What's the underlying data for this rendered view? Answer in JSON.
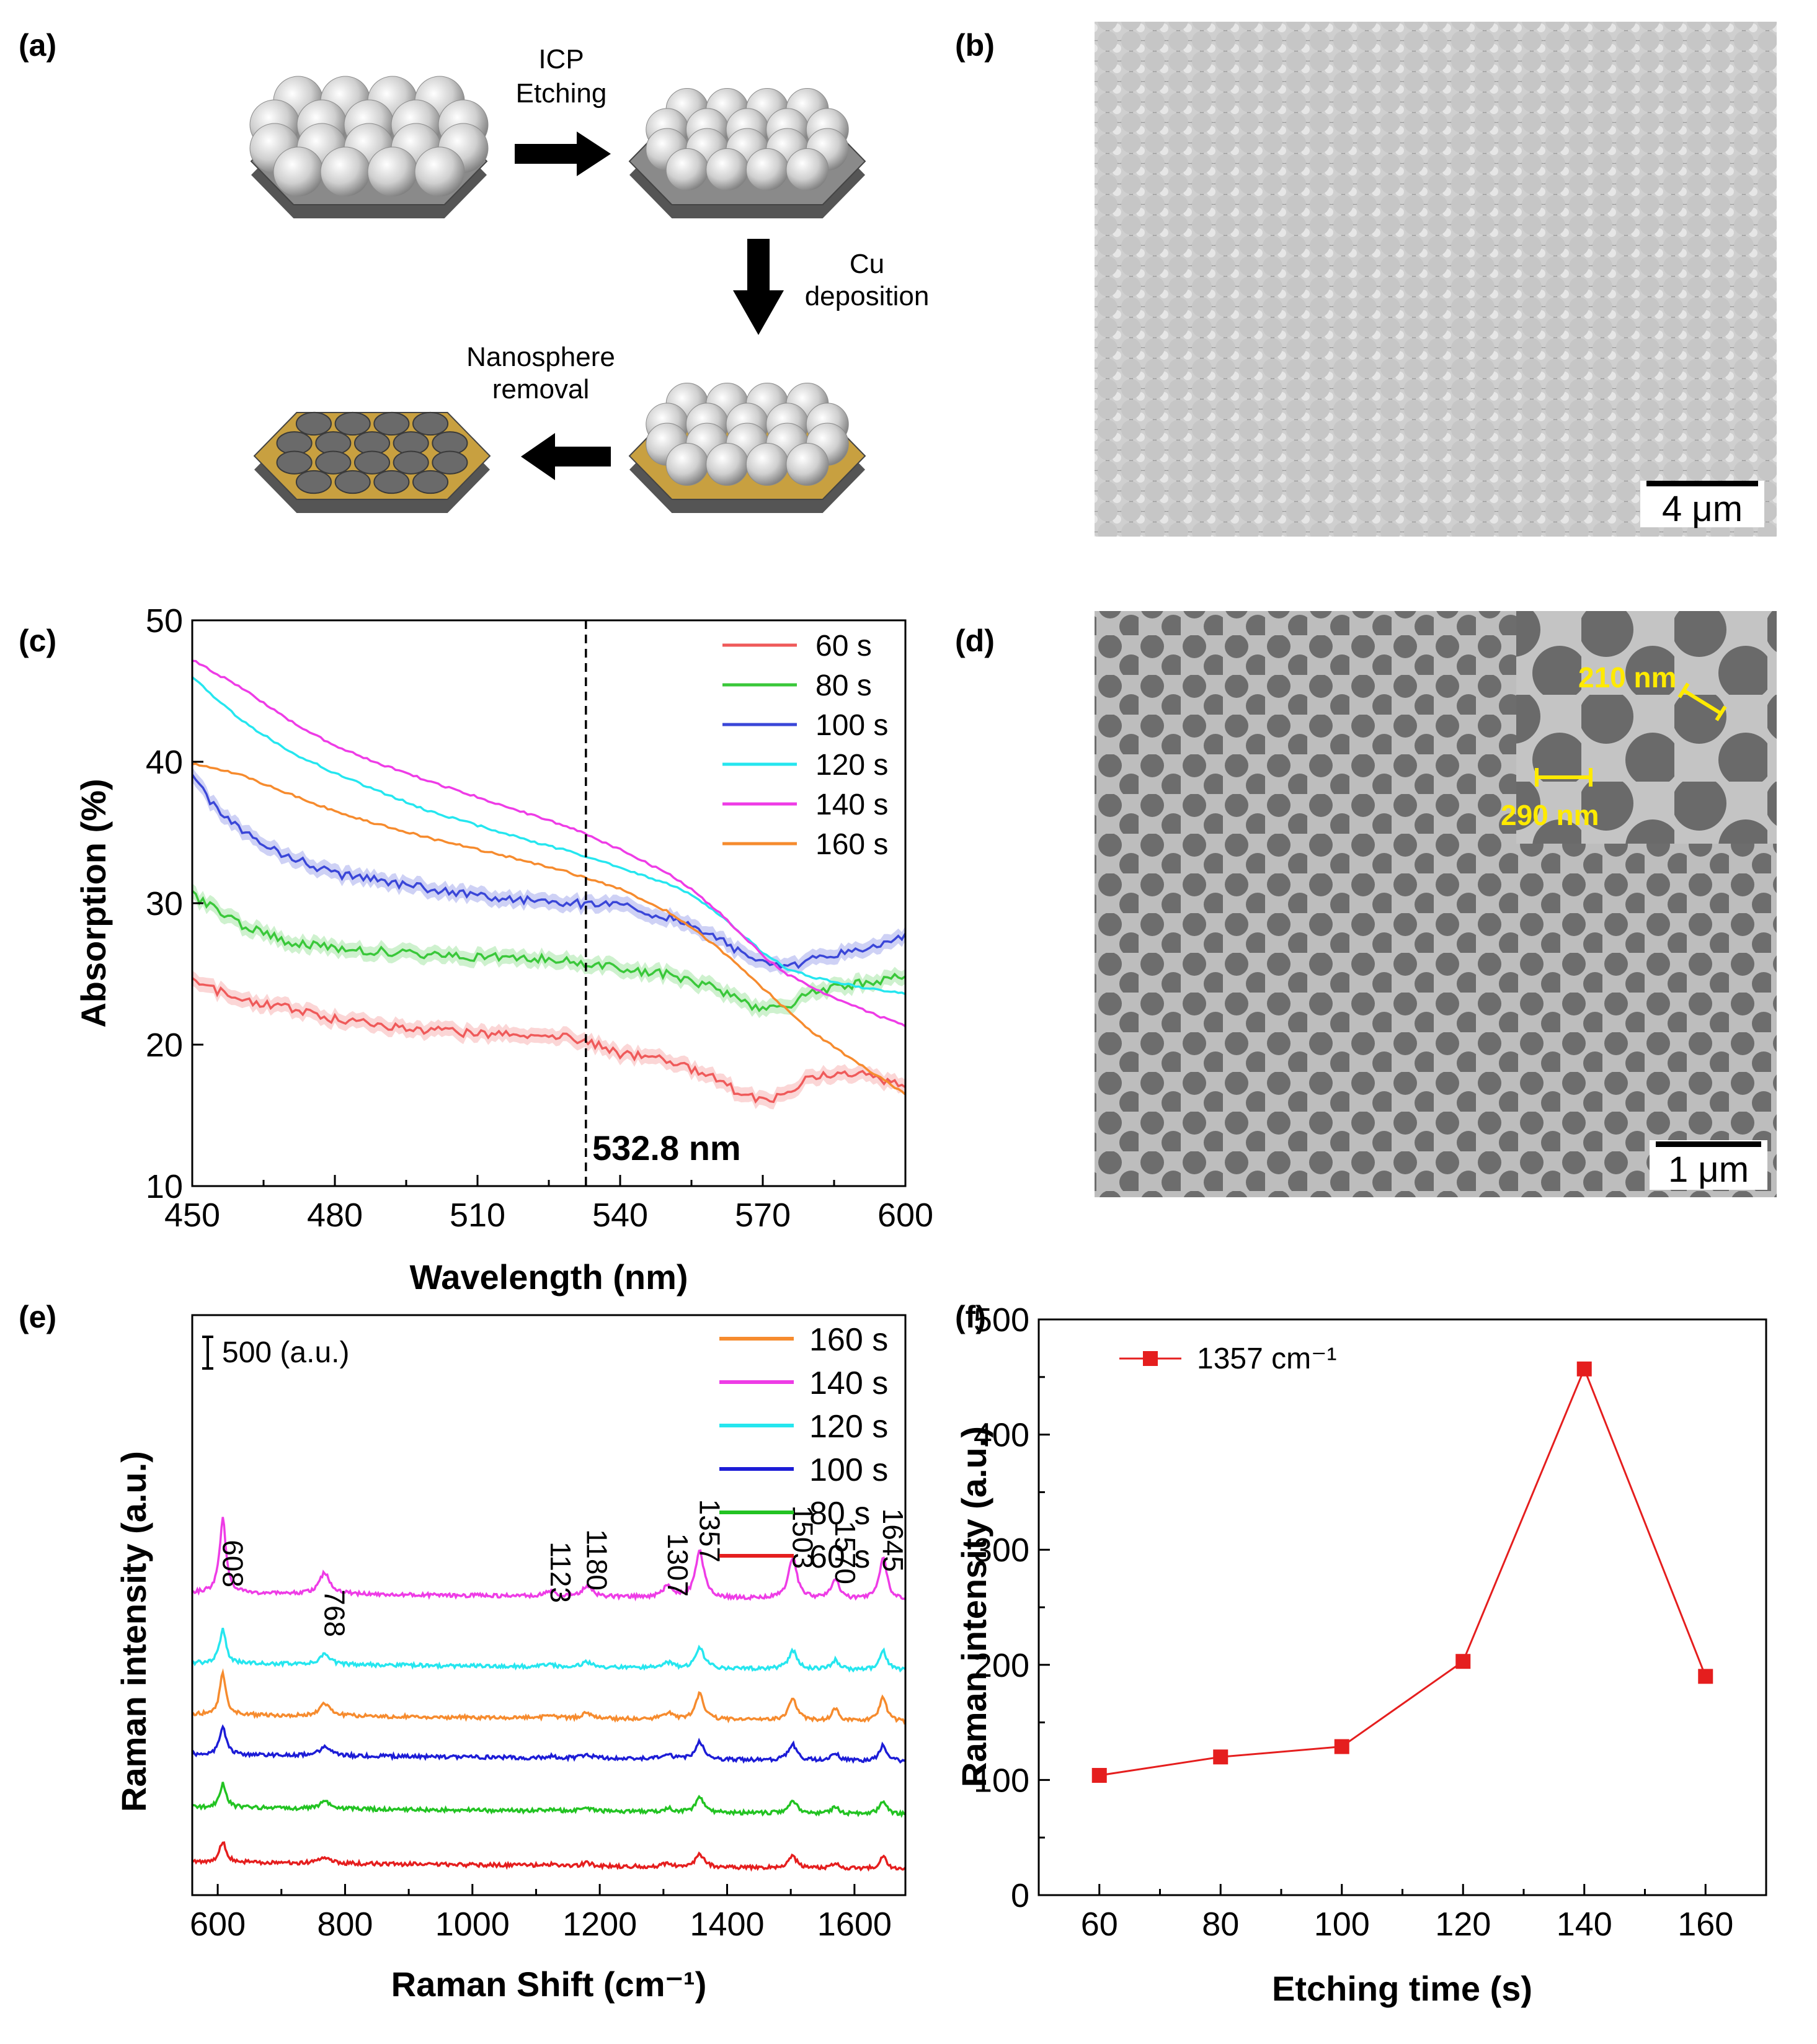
{
  "panels": {
    "a": {
      "label": "(a)",
      "step1": [
        "ICP",
        "Etching"
      ],
      "step2": [
        "Cu",
        "deposition"
      ],
      "step3": [
        "Nanosphere",
        "removal"
      ],
      "colors": {
        "sphere": "#d6d6d6",
        "base": "#8a8a8a",
        "cu": "#c8a040"
      }
    },
    "b": {
      "label": "(b)",
      "scalebar": "4 μm"
    },
    "c": {
      "label": "(c)",
      "annotation": "532.8 nm"
    },
    "d": {
      "label": "(d)",
      "scalebar": "1 μm",
      "dim1": "210 nm",
      "dim2": "290 nm"
    },
    "e": {
      "label": "(e)",
      "scale_note": "500 (a.u.)"
    },
    "f": {
      "label": "(f)"
    }
  },
  "chart_data": [
    {
      "id": "c",
      "type": "line",
      "xlabel": "Wavelength (nm)",
      "ylabel": "Absorption (%)",
      "xlim": [
        450,
        600
      ],
      "ylim": [
        10,
        50
      ],
      "xticks": [
        450,
        480,
        510,
        540,
        570,
        600
      ],
      "yticks": [
        10,
        20,
        30,
        40,
        50
      ],
      "vline": 532.8,
      "legend_position": "top-right",
      "series": [
        {
          "name": "60 s",
          "color": "#ef5a5a",
          "band": true,
          "x": [
            450,
            460,
            470,
            480,
            490,
            500,
            510,
            520,
            530,
            535,
            540,
            550,
            560,
            565,
            570,
            575,
            580,
            590,
            600
          ],
          "y": [
            24.5,
            23.2,
            22.6,
            21.8,
            21.3,
            21.0,
            20.8,
            20.6,
            20.5,
            20.0,
            19.3,
            19.0,
            17.6,
            16.6,
            16.1,
            16.4,
            17.8,
            18.0,
            17.0
          ]
        },
        {
          "name": "80 s",
          "color": "#3ac83a",
          "band": true,
          "x": [
            450,
            460,
            470,
            480,
            490,
            500,
            510,
            520,
            530,
            535,
            540,
            550,
            560,
            565,
            570,
            575,
            580,
            590,
            600
          ],
          "y": [
            30.6,
            28.5,
            27.3,
            26.8,
            26.6,
            26.3,
            26.2,
            26.2,
            25.9,
            25.7,
            25.3,
            25.0,
            24.0,
            23.2,
            22.4,
            22.6,
            23.7,
            24.3,
            24.9
          ]
        },
        {
          "name": "100 s",
          "color": "#3a46d8",
          "band": true,
          "x": [
            450,
            455,
            460,
            470,
            480,
            490,
            500,
            510,
            520,
            530,
            540,
            550,
            560,
            565,
            570,
            575,
            580,
            590,
            600
          ],
          "y": [
            38.8,
            36.8,
            35.2,
            33.3,
            32.1,
            31.6,
            31.0,
            30.6,
            30.2,
            30.0,
            29.8,
            29.0,
            27.6,
            26.6,
            25.8,
            25.5,
            26.0,
            26.8,
            27.6
          ]
        },
        {
          "name": "120 s",
          "color": "#25e6ef",
          "band": false,
          "x": [
            450,
            460,
            470,
            480,
            490,
            500,
            510,
            520,
            530,
            540,
            550,
            555,
            560,
            565,
            570,
            575,
            580,
            590,
            600
          ],
          "y": [
            46.0,
            43.0,
            40.8,
            39.2,
            37.8,
            36.5,
            35.5,
            34.5,
            33.6,
            32.5,
            31.4,
            30.6,
            29.4,
            28.0,
            26.5,
            25.4,
            24.8,
            24.1,
            23.6
          ]
        },
        {
          "name": "140 s",
          "color": "#ee3ce6",
          "band": false,
          "x": [
            450,
            460,
            470,
            480,
            490,
            500,
            510,
            520,
            530,
            540,
            550,
            555,
            560,
            565,
            570,
            575,
            580,
            590,
            600
          ],
          "y": [
            47.2,
            45.3,
            43.0,
            41.1,
            39.8,
            38.6,
            37.5,
            36.4,
            35.3,
            33.8,
            32.1,
            31.0,
            29.6,
            28.0,
            26.3,
            25.0,
            24.1,
            22.6,
            21.3
          ]
        },
        {
          "name": "160 s",
          "color": "#f68b2e",
          "band": false,
          "x": [
            450,
            460,
            470,
            480,
            490,
            500,
            510,
            520,
            530,
            540,
            550,
            555,
            560,
            565,
            570,
            575,
            580,
            590,
            600
          ],
          "y": [
            39.9,
            39.1,
            37.8,
            36.5,
            35.5,
            34.6,
            33.8,
            33.0,
            32.1,
            31.0,
            29.4,
            28.3,
            27.0,
            25.6,
            24.0,
            22.5,
            21.0,
            18.7,
            16.5
          ]
        }
      ]
    },
    {
      "id": "e",
      "type": "line",
      "xlabel": "Raman Shift (cm⁻¹)",
      "ylabel": "Raman intensity (a.u.)",
      "xlim": [
        560,
        1680
      ],
      "xticks": [
        600,
        800,
        1000,
        1200,
        1400,
        1600
      ],
      "legend_position": "top-right",
      "peaks": [
        {
          "label": "608",
          "x": 608
        },
        {
          "label": "768",
          "x": 768
        },
        {
          "label": "1123",
          "x": 1123
        },
        {
          "label": "1180",
          "x": 1180
        },
        {
          "label": "1307",
          "x": 1307
        },
        {
          "label": "1357",
          "x": 1357
        },
        {
          "label": "1503",
          "x": 1503
        },
        {
          "label": "1570",
          "x": 1570
        },
        {
          "label": "1645",
          "x": 1645
        }
      ],
      "series": [
        {
          "name": "160 s",
          "color": "#f68b2e",
          "offset": 2180,
          "scale": 0.55
        },
        {
          "name": "140 s",
          "color": "#ee3ce6",
          "offset": 3650,
          "scale": 1.0
        },
        {
          "name": "120 s",
          "color": "#25e6ef",
          "offset": 2800,
          "scale": 0.45
        },
        {
          "name": "100 s",
          "color": "#1c1cd6",
          "offset": 1700,
          "scale": 0.38
        },
        {
          "name": "80 s",
          "color": "#22c322",
          "offset": 1060,
          "scale": 0.32
        },
        {
          "name": "60 s",
          "color": "#e51e1e",
          "offset": 400,
          "scale": 0.28
        }
      ],
      "peak_heights": [
        900,
        260,
        60,
        130,
        140,
        560,
        500,
        250,
        520
      ]
    },
    {
      "id": "f",
      "type": "line",
      "xlabel": "Etching time (s)",
      "ylabel": "Raman intensity (a.u.)",
      "xlim": [
        50,
        170
      ],
      "ylim": [
        0,
        500
      ],
      "xticks": [
        60,
        80,
        100,
        120,
        140,
        160
      ],
      "yticks": [
        0,
        100,
        200,
        300,
        400,
        500
      ],
      "legend_position": "top-left",
      "series": [
        {
          "name": "1357 cm⁻¹",
          "color": "#e51e1e",
          "x": [
            60,
            80,
            100,
            120,
            140,
            160
          ],
          "y": [
            104,
            120,
            129,
            203,
            457,
            190
          ]
        }
      ]
    }
  ]
}
